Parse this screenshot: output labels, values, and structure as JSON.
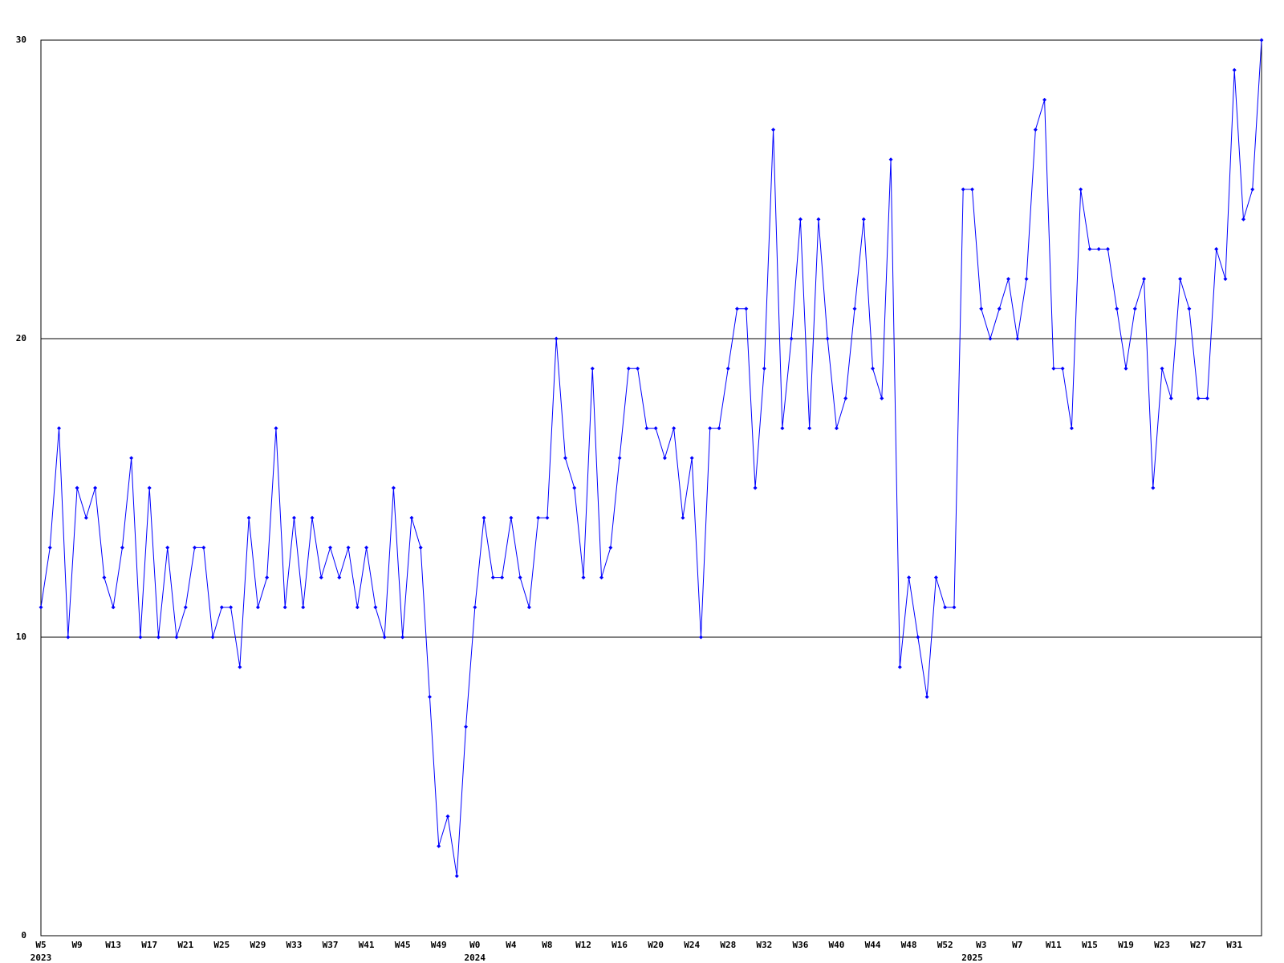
{
  "chart_data": {
    "type": "line",
    "categories": [
      "W5",
      null,
      null,
      null,
      "W9",
      null,
      null,
      null,
      "W13",
      null,
      null,
      null,
      "W17",
      null,
      null,
      null,
      "W21",
      null,
      null,
      null,
      "W25",
      null,
      null,
      null,
      "W29",
      null,
      null,
      null,
      "W33",
      null,
      null,
      null,
      "W37",
      null,
      null,
      null,
      "W41",
      null,
      null,
      null,
      "W45",
      null,
      null,
      null,
      "W49",
      null,
      null,
      null,
      "W0",
      null,
      null,
      null,
      "W4",
      null,
      null,
      null,
      "W8",
      null,
      null,
      null,
      "W12",
      null,
      null,
      null,
      "W16",
      null,
      null,
      null,
      "W20",
      null,
      null,
      null,
      "W24",
      null,
      null,
      null,
      "W28",
      null,
      null,
      null,
      "W32",
      null,
      null,
      null,
      "W36",
      null,
      null,
      null,
      "W40",
      null,
      null,
      null,
      "W44",
      null,
      null,
      null,
      "W48",
      null,
      null,
      null,
      "W52",
      null,
      null,
      null,
      "W3",
      null,
      null,
      null,
      "W7",
      null,
      null,
      null,
      "W11",
      null,
      null,
      null,
      "W15",
      null,
      null,
      null,
      "W19",
      null,
      null,
      null,
      "W23",
      null,
      null,
      null,
      "W27",
      null,
      null,
      null,
      "W31",
      null,
      null,
      null
    ],
    "years": [
      "2023",
      null,
      null,
      null,
      null,
      null,
      null,
      null,
      null,
      null,
      null,
      null,
      null,
      null,
      null,
      null,
      null,
      null,
      null,
      null,
      null,
      null,
      null,
      null,
      null,
      null,
      null,
      null,
      null,
      null,
      null,
      null,
      null,
      null,
      null,
      null,
      null,
      null,
      null,
      null,
      null,
      null,
      null,
      null,
      null,
      null,
      null,
      null,
      "2024",
      null,
      null,
      null,
      null,
      null,
      null,
      null,
      null,
      null,
      null,
      null,
      null,
      null,
      null,
      null,
      null,
      null,
      null,
      null,
      null,
      null,
      null,
      null,
      null,
      null,
      null,
      null,
      null,
      null,
      null,
      null,
      null,
      null,
      null,
      null,
      null,
      null,
      null,
      null,
      null,
      null,
      null,
      null,
      null,
      null,
      null,
      null,
      null,
      null,
      null,
      null,
      null,
      null,
      null,
      "2025",
      null,
      null,
      null,
      null,
      null,
      null,
      null,
      null,
      null,
      null,
      null,
      null,
      null,
      null,
      null,
      null,
      null,
      null,
      null,
      null,
      null,
      null,
      null,
      null,
      null,
      null,
      null,
      null,
      null,
      null,
      null,
      null,
      null,
      null
    ],
    "series": [
      {
        "color": "#0000ff",
        "values": [
          11,
          13,
          17,
          10,
          15,
          14,
          15,
          12,
          11,
          13,
          16,
          10,
          15,
          10,
          13,
          10,
          11,
          13,
          13,
          10,
          11,
          11,
          9,
          14,
          11,
          12,
          17,
          11,
          14,
          11,
          14,
          12,
          13,
          12,
          13,
          11,
          13,
          11,
          10,
          15,
          10,
          14,
          13,
          8,
          3,
          4,
          2,
          7,
          11,
          14,
          12,
          12,
          14,
          12,
          11,
          14,
          14,
          20,
          16,
          15,
          12,
          19,
          12,
          13,
          16,
          19,
          19,
          17,
          17,
          16,
          17,
          14,
          16,
          10,
          17,
          17,
          19,
          21,
          21,
          15,
          19,
          27,
          17,
          20,
          24,
          17,
          24,
          20,
          17,
          18,
          21,
          24,
          19,
          18,
          26,
          9,
          12,
          10,
          8,
          12,
          11,
          11,
          25,
          25,
          21,
          20,
          21,
          22,
          20,
          22,
          27,
          28,
          19,
          19,
          17,
          25,
          23,
          23,
          23,
          21,
          19,
          21,
          22,
          15,
          19,
          18,
          22,
          21,
          18,
          18,
          23,
          22,
          29,
          24,
          25,
          30
        ]
      }
    ],
    "ylim": [
      0,
      30
    ],
    "yticks": [
      0,
      10,
      20,
      30
    ],
    "grid": true,
    "markers": true
  }
}
